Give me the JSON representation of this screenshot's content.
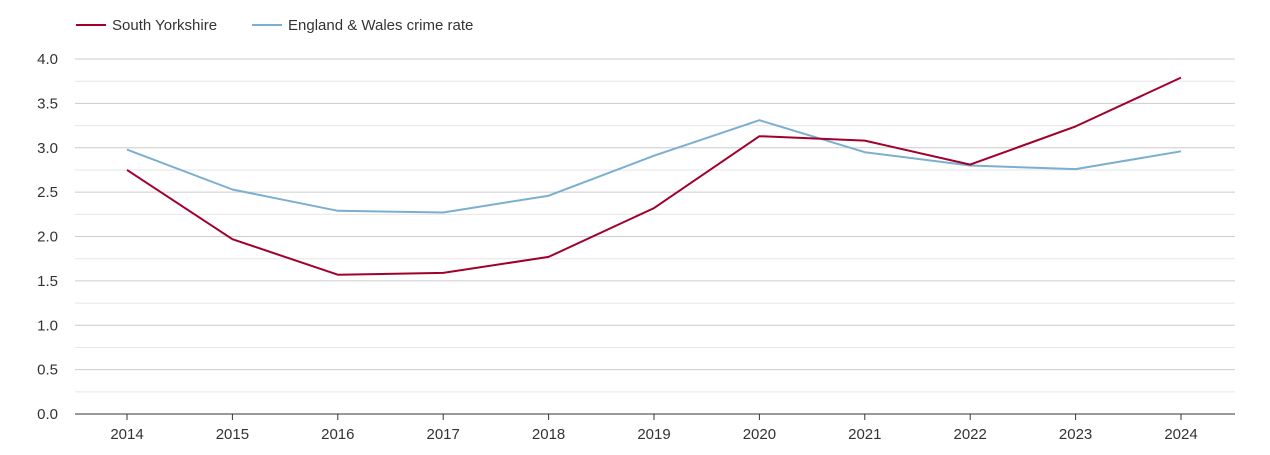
{
  "chart_data": {
    "type": "line",
    "title": "",
    "xlabel": "",
    "ylabel": "",
    "x": [
      "2014",
      "2015",
      "2016",
      "2017",
      "2018",
      "2019",
      "2020",
      "2021",
      "2022",
      "2023",
      "2024"
    ],
    "ylim": [
      0,
      4
    ],
    "yticks": [
      "0.0",
      "0.5",
      "1.0",
      "1.5",
      "2.0",
      "2.5",
      "3.0",
      "3.5",
      "4.0"
    ],
    "grid": true,
    "legend_position": "top-left",
    "series": [
      {
        "name": "South Yorkshire",
        "color": "#a0002c",
        "values": [
          2.75,
          1.97,
          1.57,
          1.59,
          1.77,
          2.32,
          3.13,
          3.08,
          2.81,
          3.24,
          3.79
        ]
      },
      {
        "name": "England & Wales crime rate",
        "color": "#7bafd0",
        "values": [
          2.98,
          2.53,
          2.29,
          2.27,
          2.46,
          2.91,
          3.31,
          2.95,
          2.8,
          2.76,
          2.96
        ]
      }
    ]
  }
}
